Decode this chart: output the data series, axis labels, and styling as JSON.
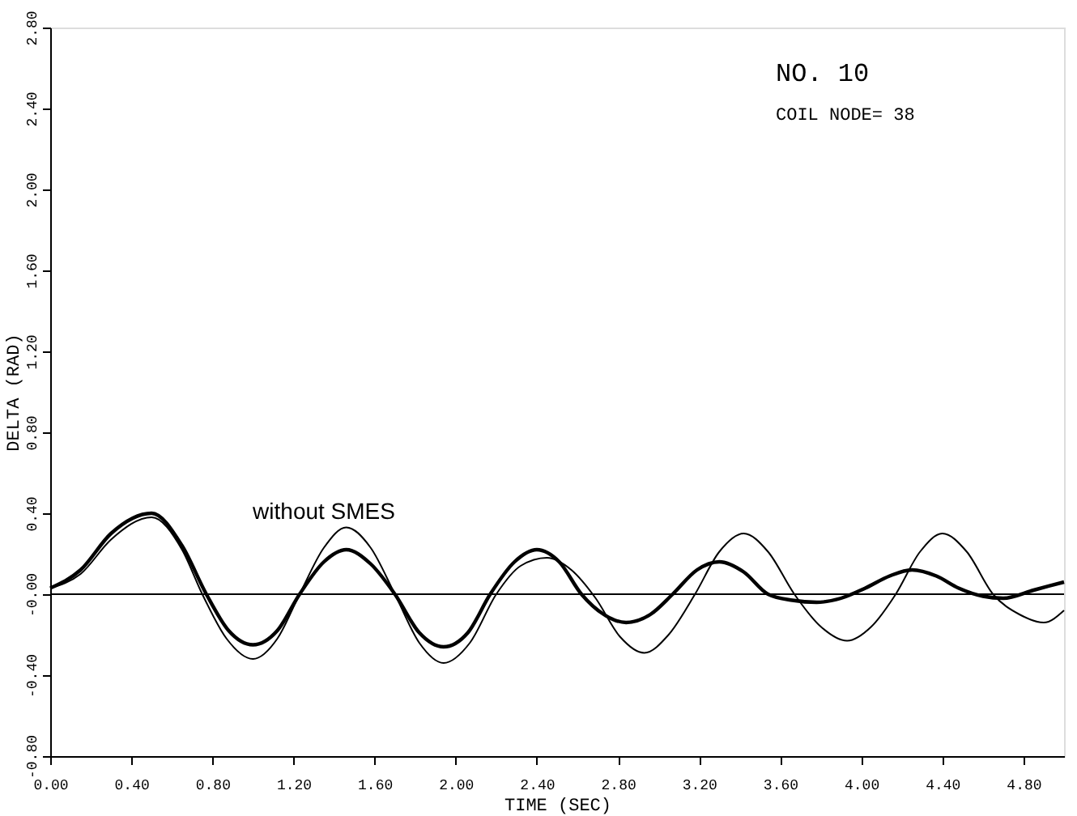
{
  "chart_data": {
    "type": "line",
    "xlabel": "TIME (SEC)",
    "ylabel": "DELTA (RAD)",
    "annotations": [
      "NO. 10",
      "COIL NODE= 38"
    ],
    "series": [
      {
        "color": "#000000",
        "x": [
          0,
          0.15,
          0.3,
          0.5,
          0.65,
          0.77,
          0.88,
          1.0,
          1.12,
          1.23,
          1.35,
          1.46,
          1.58,
          1.7,
          1.82,
          1.94,
          2.06,
          2.17,
          2.29,
          2.4,
          2.51,
          2.62,
          2.73,
          2.84,
          2.96,
          3.07,
          3.19,
          3.3,
          3.42,
          3.54,
          3.66,
          3.78,
          3.9,
          4.02,
          4.14,
          4.25,
          4.37,
          4.48,
          4.6,
          4.7,
          4.85,
          5.0
        ],
        "values": [
          0.03,
          0.12,
          0.3,
          0.4,
          0.24,
          0.0,
          -0.18,
          -0.25,
          -0.18,
          0.0,
          0.16,
          0.22,
          0.15,
          0.0,
          -0.19,
          -0.26,
          -0.19,
          0.0,
          0.16,
          0.22,
          0.16,
          0.0,
          -0.1,
          -0.14,
          -0.1,
          0.0,
          0.12,
          0.16,
          0.11,
          0.0,
          -0.03,
          -0.04,
          -0.02,
          0.03,
          0.09,
          0.12,
          0.09,
          0.03,
          -0.01,
          -0.02,
          0.02,
          0.06
        ]
      },
      {
        "name": "without SMES",
        "color": "#000000",
        "x": [
          0,
          0.15,
          0.3,
          0.5,
          0.65,
          0.75,
          0.87,
          1.0,
          1.12,
          1.23,
          1.35,
          1.46,
          1.58,
          1.7,
          1.82,
          1.94,
          2.07,
          2.2,
          2.32,
          2.45,
          2.57,
          2.69,
          2.81,
          2.93,
          3.05,
          3.18,
          3.3,
          3.42,
          3.54,
          3.67,
          3.8,
          3.93,
          4.05,
          4.17,
          4.29,
          4.4,
          4.52,
          4.65,
          4.78,
          4.9,
          5.0
        ],
        "values": [
          0.03,
          0.1,
          0.27,
          0.38,
          0.22,
          0.0,
          -0.22,
          -0.32,
          -0.22,
          0.0,
          0.23,
          0.33,
          0.23,
          0.0,
          -0.24,
          -0.34,
          -0.24,
          0.0,
          0.14,
          0.18,
          0.12,
          -0.02,
          -0.21,
          -0.29,
          -0.2,
          0.0,
          0.21,
          0.3,
          0.21,
          0.0,
          -0.16,
          -0.23,
          -0.16,
          0.0,
          0.21,
          0.3,
          0.21,
          0.0,
          -0.1,
          -0.14,
          -0.08
        ]
      }
    ],
    "xlim": [
      0,
      5.0
    ],
    "xticks": [
      {
        "value": 0,
        "label": "0.00"
      },
      {
        "value": 0.4,
        "label": "0.40"
      },
      {
        "value": 0.8,
        "label": "0.80"
      },
      {
        "value": 1.2,
        "label": "1.20"
      },
      {
        "value": 1.6,
        "label": "1.60"
      },
      {
        "value": 2.0,
        "label": "2.00"
      },
      {
        "value": 2.4,
        "label": "2.40"
      },
      {
        "value": 2.8,
        "label": "2.80"
      },
      {
        "value": 3.2,
        "label": "3.20"
      },
      {
        "value": 3.6,
        "label": "3.60"
      },
      {
        "value": 4.0,
        "label": "4.00"
      },
      {
        "value": 4.4,
        "label": "4.40"
      },
      {
        "value": 4.8,
        "label": "4.80"
      }
    ],
    "ylim": [
      -0.8,
      2.8
    ],
    "yticks": [
      {
        "value": -0.8,
        "label": "-0.80"
      },
      {
        "value": -0.4,
        "label": "-0.40"
      },
      {
        "value": 0,
        "label": "-0.00"
      },
      {
        "value": 0.4,
        "label": "0.40"
      },
      {
        "value": 0.8,
        "label": "0.80"
      },
      {
        "value": 1.2,
        "label": "1.20"
      },
      {
        "value": 1.6,
        "label": "1.60"
      },
      {
        "value": 2.0,
        "label": "2.00"
      },
      {
        "value": 2.4,
        "label": "2.40"
      },
      {
        "value": 2.8,
        "label": "2.80"
      }
    ],
    "ref_lines": [
      {
        "axis": "y",
        "value": 0,
        "color": "#000000"
      }
    ],
    "grid": false,
    "marker": "none",
    "line_style": "solid"
  }
}
